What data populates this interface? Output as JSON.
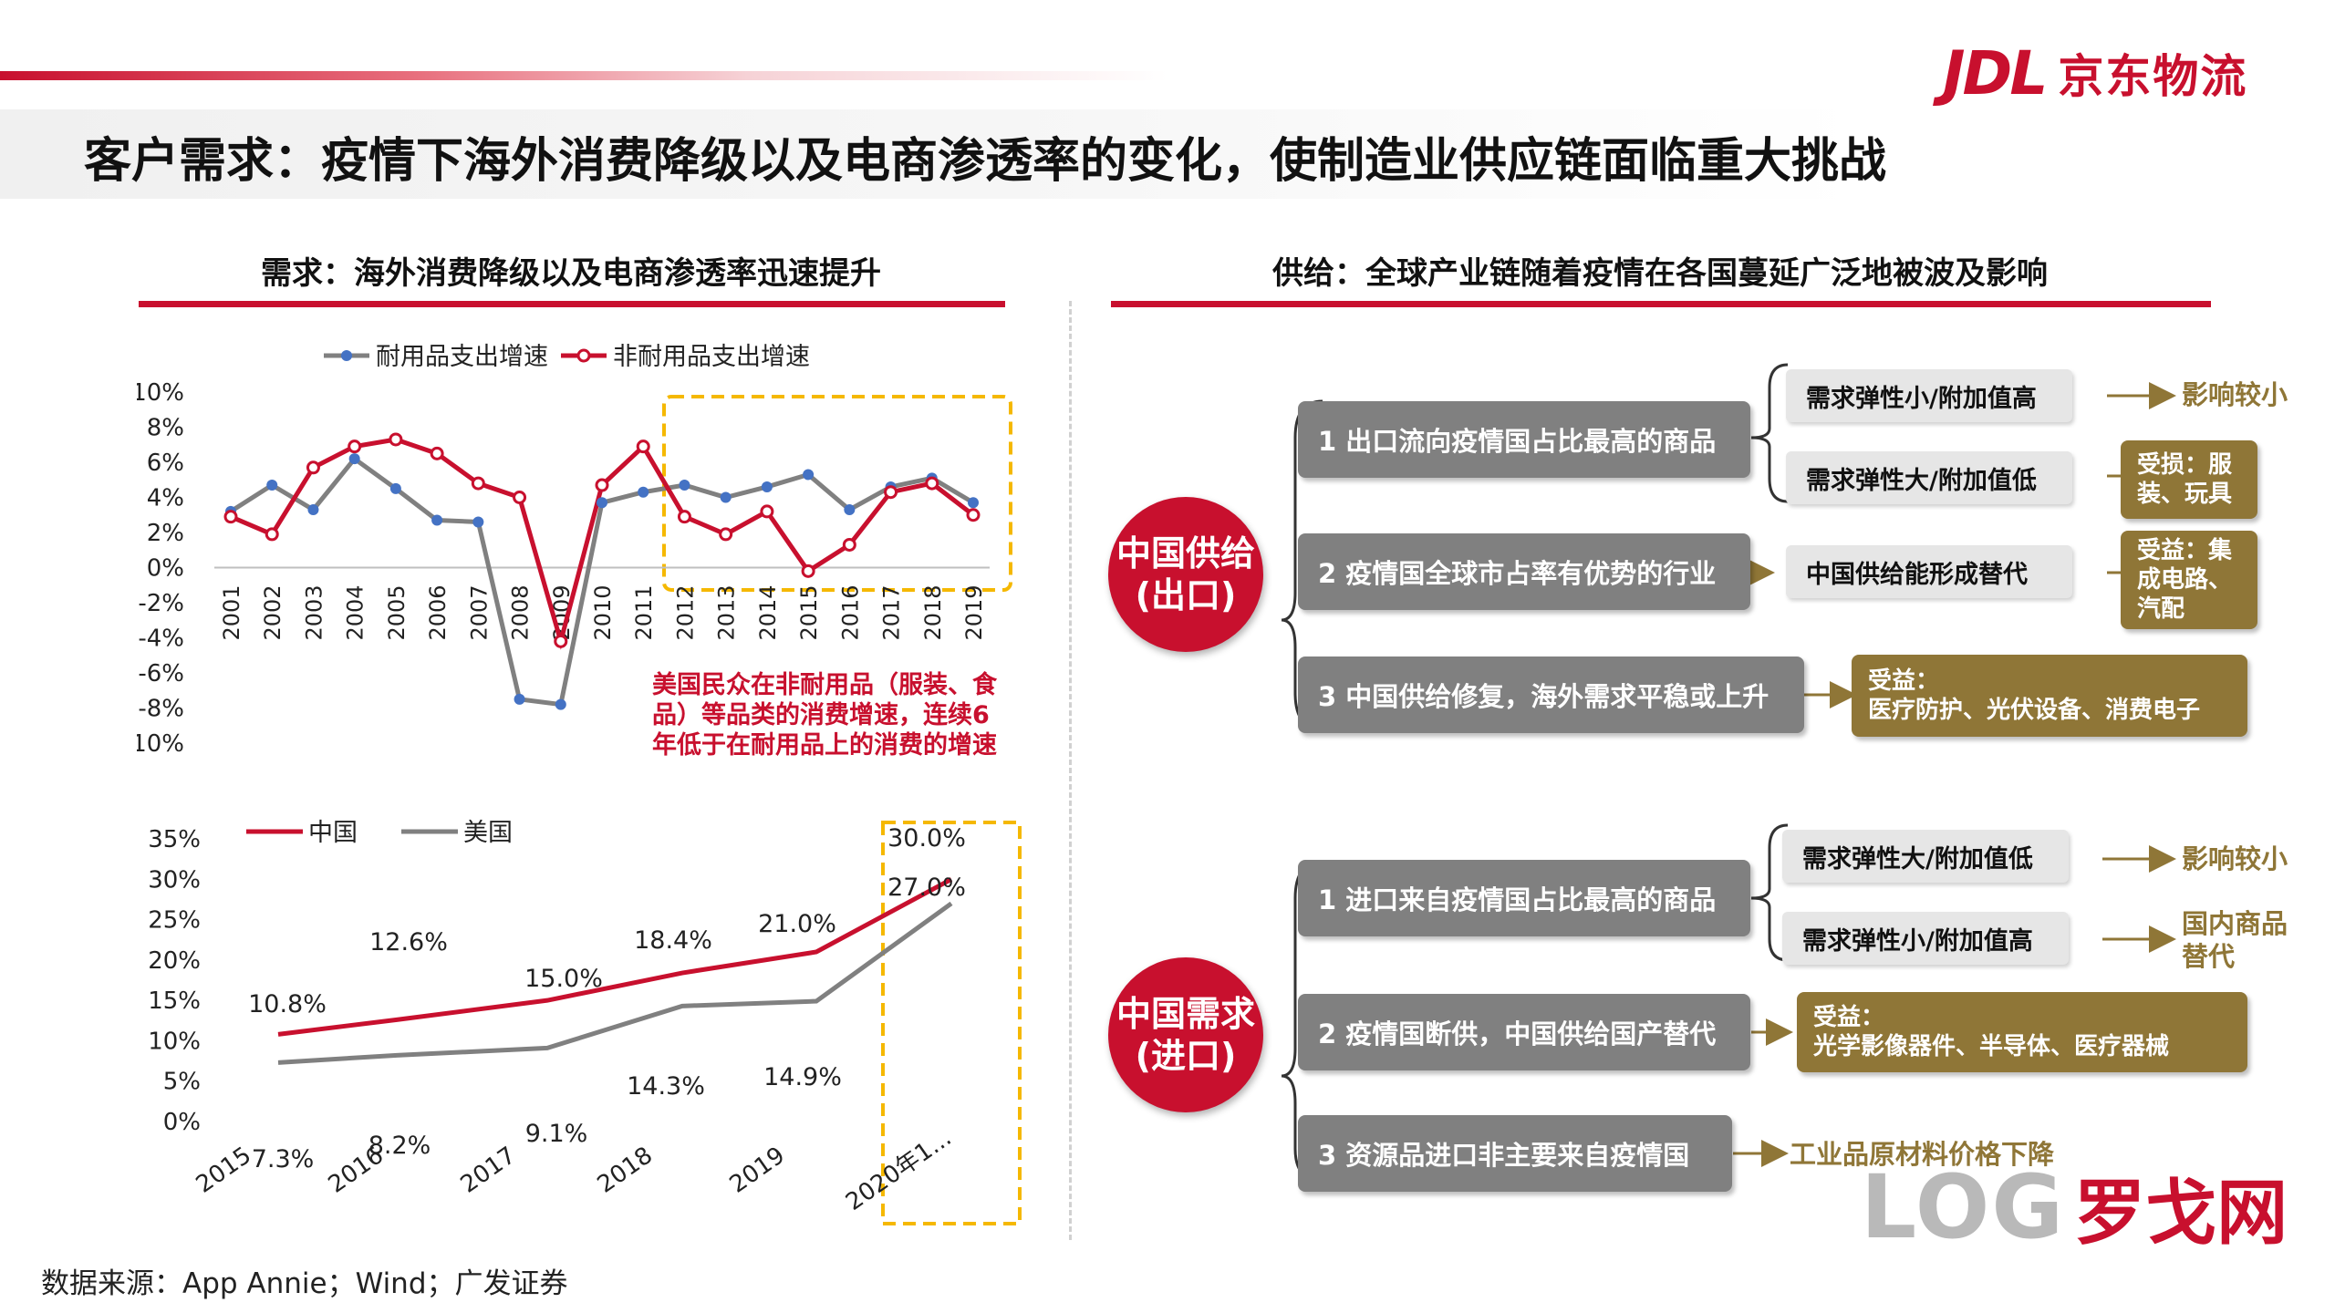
{
  "brand": {
    "logo": "JDL",
    "name": "京东物流"
  },
  "title": "客户需求：疫情下海外消费降级以及电商渗透率的变化，使制造业供应链面临重大挑战",
  "left_section": {
    "title": "需求：海外消费降级以及电商渗透率迅速提升"
  },
  "right_section": {
    "title": "供给：全球产业链随着疫情在各国蔓延广泛地被波及影响"
  },
  "colors": {
    "accent_red": "#c8102e",
    "gray_series": "#808080",
    "blue_marker": "#4472c4",
    "gold": "#8f7637",
    "highlight_box": "#f5b800"
  },
  "chart_data": [
    {
      "type": "line",
      "x": [
        "2001",
        "2002",
        "2003",
        "2004",
        "2005",
        "2006",
        "2007",
        "2008",
        "2009",
        "2010",
        "2011",
        "2012",
        "2013",
        "2014",
        "2015",
        "2016",
        "2017",
        "2018",
        "2019"
      ],
      "series": [
        {
          "name": "耐用品支出增速",
          "values": [
            3.2,
            4.7,
            3.3,
            6.2,
            4.5,
            2.7,
            2.6,
            -7.5,
            -7.8,
            3.7,
            4.3,
            4.7,
            4.0,
            4.6,
            5.3,
            3.3,
            4.6,
            5.1,
            3.7
          ]
        },
        {
          "name": "非耐用品支出增速",
          "values": [
            2.9,
            1.9,
            5.7,
            6.9,
            7.3,
            6.5,
            4.8,
            4.0,
            -4.2,
            4.7,
            6.9,
            2.9,
            1.9,
            3.2,
            -0.2,
            1.3,
            4.3,
            4.8,
            3.0
          ]
        }
      ],
      "yticks": [
        "10%",
        "8%",
        "6%",
        "4%",
        "2%",
        "0%",
        "-2%",
        "-4%",
        "-6%",
        "-8%",
        "-10%"
      ],
      "ylim": [
        -10,
        10
      ],
      "legend": "top",
      "annotation": "美国民众在非耐用品（服装、食品）等品类的消费增速，连续6年低于在耐用品上的消费的增速",
      "annotation_lines": [
        "美国民众在非耐用品（服装、食",
        "品）等品类的消费增速，连续6",
        "年低于在耐用品上的消费的增速"
      ]
    },
    {
      "type": "line",
      "categories": [
        "2015",
        "2016",
        "2017",
        "2018",
        "2019",
        "2020年1..."
      ],
      "series": [
        {
          "name": "中国",
          "values": [
            10.8,
            12.6,
            15.0,
            18.4,
            21.0,
            30.0
          ],
          "labels": [
            "10.8%",
            "12.6%",
            "15.0%",
            "18.4%",
            "21.0%",
            "30.0%"
          ]
        },
        {
          "name": "美国",
          "values": [
            7.3,
            8.2,
            9.1,
            14.3,
            14.9,
            27.0
          ],
          "labels": [
            "7.3%",
            "8.2%",
            "9.1%",
            "14.3%",
            "14.9%",
            "27.0%"
          ]
        }
      ],
      "yticks": [
        "35%",
        "30%",
        "25%",
        "20%",
        "15%",
        "10%",
        "5%",
        "0%"
      ],
      "ylim": [
        0,
        35
      ],
      "legend": "top-left"
    }
  ],
  "supply": {
    "circle_lines": [
      "中国供给",
      "(出口)"
    ],
    "items": [
      {
        "label": "1 出口流向疫情国占比最高的商品",
        "subs": [
          {
            "label": "需求弹性小/附加值高",
            "result": "影响较小"
          },
          {
            "label": "需求弹性大/附加值低",
            "result": "受损：服\n装、玩具"
          }
        ]
      },
      {
        "label": "2 疫情国全球市占率有优势的行业",
        "subs": [
          {
            "label": "中国供给能形成替代",
            "result": "受益：集\n成电路、\n汽配"
          }
        ]
      },
      {
        "label": "3 中国供给修复，海外需求平稳或上升",
        "result": "受益：\n医疗防护、光伏设备、消费电子"
      }
    ]
  },
  "demand": {
    "circle_lines": [
      "中国需求",
      "(进口)"
    ],
    "items": [
      {
        "label": "1 进口来自疫情国占比最高的商品",
        "subs": [
          {
            "label": "需求弹性大/附加值低",
            "result": "影响较小"
          },
          {
            "label": "需求弹性小/附加值高",
            "result": "国内商品\n替代"
          }
        ]
      },
      {
        "label": "2 疫情国断供，中国供给国产替代",
        "result": "受益：\n光学影像器件、半导体、医疗器械"
      },
      {
        "label": "3 资源品进口非主要来自疫情国",
        "result": "工业品原材料价格下降"
      }
    ]
  },
  "source": "数据来源：App Annie；Wind；广发证券",
  "watermark": {
    "log": "LOG",
    "name": "罗戈网"
  }
}
